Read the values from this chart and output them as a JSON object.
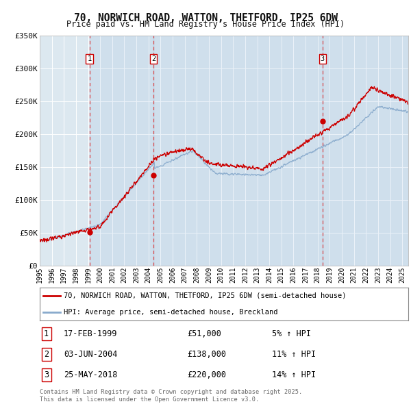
{
  "title": "70, NORWICH ROAD, WATTON, THETFORD, IP25 6DW",
  "subtitle": "Price paid vs. HM Land Registry's House Price Index (HPI)",
  "legend_property": "70, NORWICH ROAD, WATTON, THETFORD, IP25 6DW (semi-detached house)",
  "legend_hpi": "HPI: Average price, semi-detached house, Breckland",
  "property_color": "#cc0000",
  "hpi_color": "#88aacc",
  "plot_bg_color": "#dce8f0",
  "grid_color": "#ffffff",
  "vline_color": "#dd3333",
  "purchases": [
    {
      "label": "1",
      "date_str": "17-FEB-1999",
      "year": 1999.12,
      "price": 51000,
      "hpi_pct": "5% ↑ HPI"
    },
    {
      "label": "2",
      "date_str": "03-JUN-2004",
      "year": 2004.42,
      "price": 138000,
      "hpi_pct": "11% ↑ HPI"
    },
    {
      "label": "3",
      "date_str": "25-MAY-2018",
      "year": 2018.4,
      "price": 220000,
      "hpi_pct": "14% ↑ HPI"
    }
  ],
  "ylim": [
    0,
    350000
  ],
  "yticks": [
    0,
    50000,
    100000,
    150000,
    200000,
    250000,
    300000,
    350000
  ],
  "ytick_labels": [
    "£0",
    "£50K",
    "£100K",
    "£150K",
    "£200K",
    "£250K",
    "£300K",
    "£350K"
  ],
  "xstart": 1995.0,
  "xend": 2025.5,
  "footnote": "Contains HM Land Registry data © Crown copyright and database right 2025.\nThis data is licensed under the Open Government Licence v3.0.",
  "table_data": [
    [
      "1",
      "17-FEB-1999",
      "£51,000",
      "5% ↑ HPI"
    ],
    [
      "2",
      "03-JUN-2004",
      "£138,000",
      "11% ↑ HPI"
    ],
    [
      "3",
      "25-MAY-2018",
      "£220,000",
      "14% ↑ HPI"
    ]
  ]
}
